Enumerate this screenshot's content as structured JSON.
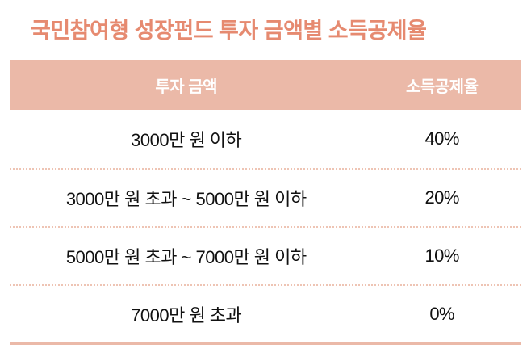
{
  "title": "국민참여형 성장펀드 투자 금액별 소득공제율",
  "colors": {
    "title_color": "#e68a70",
    "header_bg": "#ebb9a8",
    "header_text": "#ffffff",
    "cell_text": "#111111",
    "divider": "#eec4b4",
    "bottom_line": "#ebb9a8"
  },
  "chart_data": {
    "type": "table",
    "title": "국민참여형 성장펀드 투자 금액별 소득공제율",
    "columns": [
      "투자 금액",
      "소득공제율"
    ],
    "rows": [
      [
        "3000만 원 이하",
        "40%"
      ],
      [
        "3000만 원 초과 ~ 5000만 원 이하",
        "20%"
      ],
      [
        "5000만 원 초과 ~ 7000만 원 이하",
        "10%"
      ],
      [
        "7000만 원 초과",
        "0%"
      ]
    ],
    "layout": {
      "header_position": "top",
      "column_align": [
        "center",
        "center"
      ],
      "row_separator": "dotted",
      "grid": false
    }
  }
}
